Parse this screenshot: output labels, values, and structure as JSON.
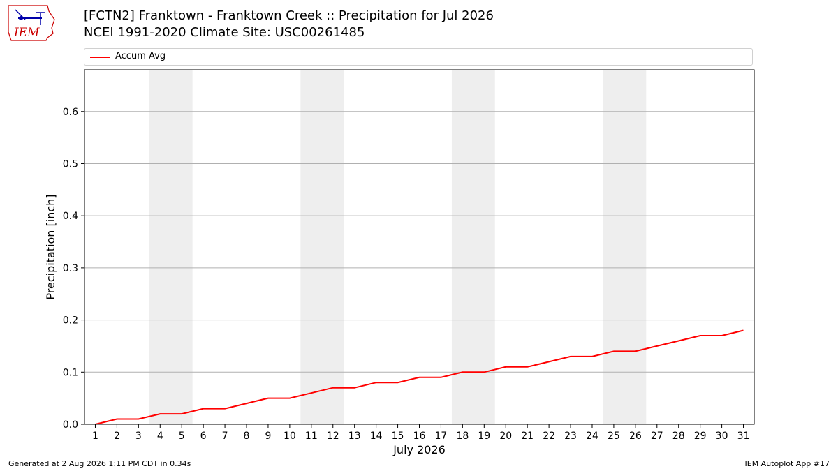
{
  "header": {
    "title_line1": "[FCTN2] Franktown - Franktown Creek :: Precipitation for Jul 2026",
    "title_line2": "NCEI 1991-2020 Climate Site: USC00261485",
    "logo_text": "IEM"
  },
  "footer": {
    "generated": "Generated at 2 Aug 2026 1:11 PM CDT in 0.34s",
    "app": "IEM Autoplot App #17"
  },
  "colors": {
    "series": "#ff0000",
    "weekend_band": "#eeeeee",
    "grid": "#b0b0b0",
    "logo": "#cc0000"
  },
  "chart_data": {
    "type": "line",
    "title": "[FCTN2] Franktown - Franktown Creek :: Precipitation for Jul 2026",
    "xlabel": "July 2026",
    "ylabel": "Precipitation [inch]",
    "x": [
      1,
      2,
      3,
      4,
      5,
      6,
      7,
      8,
      9,
      10,
      11,
      12,
      13,
      14,
      15,
      16,
      17,
      18,
      19,
      20,
      21,
      22,
      23,
      24,
      25,
      26,
      27,
      28,
      29,
      30,
      31
    ],
    "series": [
      {
        "name": "Accum Avg",
        "values": [
          0.0,
          0.01,
          0.01,
          0.02,
          0.02,
          0.03,
          0.03,
          0.04,
          0.05,
          0.05,
          0.06,
          0.07,
          0.07,
          0.08,
          0.08,
          0.09,
          0.09,
          0.1,
          0.1,
          0.11,
          0.11,
          0.12,
          0.13,
          0.13,
          0.14,
          0.14,
          0.15,
          0.16,
          0.17,
          0.17,
          0.18
        ]
      }
    ],
    "xlim": [
      0.5,
      31.5
    ],
    "ylim": [
      0,
      0.68
    ],
    "yticks": [
      0.0,
      0.1,
      0.2,
      0.3,
      0.4,
      0.5,
      0.6
    ],
    "ytick_labels": [
      "0.0",
      "0.1",
      "0.2",
      "0.3",
      "0.4",
      "0.5",
      "0.6"
    ],
    "xticks": [
      1,
      2,
      3,
      4,
      5,
      6,
      7,
      8,
      9,
      10,
      11,
      12,
      13,
      14,
      15,
      16,
      17,
      18,
      19,
      20,
      21,
      22,
      23,
      24,
      25,
      26,
      27,
      28,
      29,
      30,
      31
    ],
    "xtick_labels": [
      "1",
      "2",
      "3",
      "4",
      "5",
      "6",
      "7",
      "8",
      "9",
      "10",
      "11",
      "12",
      "13",
      "14",
      "15",
      "16",
      "17",
      "18",
      "19",
      "20",
      "21",
      "22",
      "23",
      "24",
      "25",
      "26",
      "27",
      "28",
      "29",
      "30",
      "31"
    ],
    "weekend_bands": [
      [
        3.5,
        5.5
      ],
      [
        10.5,
        12.5
      ],
      [
        17.5,
        19.5
      ],
      [
        24.5,
        26.5
      ]
    ],
    "grid": "horizontal",
    "legend_position": "top"
  }
}
